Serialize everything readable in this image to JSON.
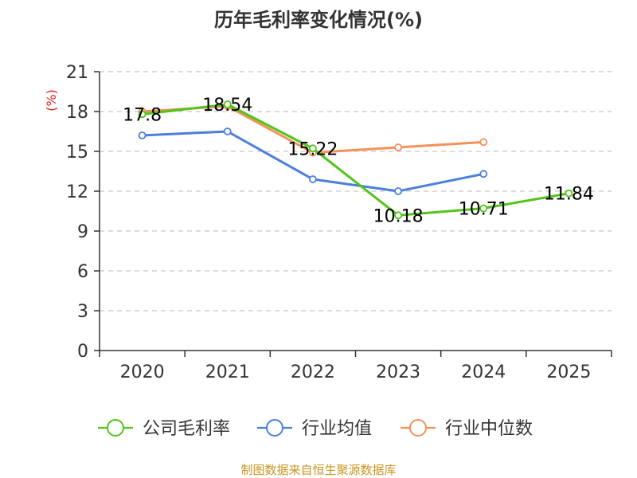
{
  "chart_data": {
    "type": "line",
    "title": "历年毛利率变化情况(%)",
    "ylabel": "(%)",
    "xlabel": "",
    "categories": [
      "2020",
      "2021",
      "2022",
      "2023",
      "2024",
      "2025"
    ],
    "ylim": [
      0,
      21
    ],
    "yticks": [
      0,
      3,
      6,
      9,
      12,
      15,
      18,
      21
    ],
    "grid": true,
    "legend_position": "bottom",
    "series": [
      {
        "name": "公司毛利率",
        "color": "#52c41a",
        "values": [
          17.8,
          18.54,
          15.22,
          10.18,
          10.71,
          11.84
        ],
        "labels": [
          "17.8",
          "18.54",
          "15.22",
          "10.18",
          "10.71",
          "11.84"
        ]
      },
      {
        "name": "行业均值",
        "color": "#4a7fdc",
        "values": [
          16.2,
          16.5,
          12.9,
          12.0,
          13.3,
          null
        ]
      },
      {
        "name": "行业中位数",
        "color": "#f4915a",
        "values": [
          18.0,
          18.4,
          14.9,
          15.3,
          15.7,
          null
        ]
      }
    ],
    "source": "制图数据来自恒生聚源数据库"
  }
}
